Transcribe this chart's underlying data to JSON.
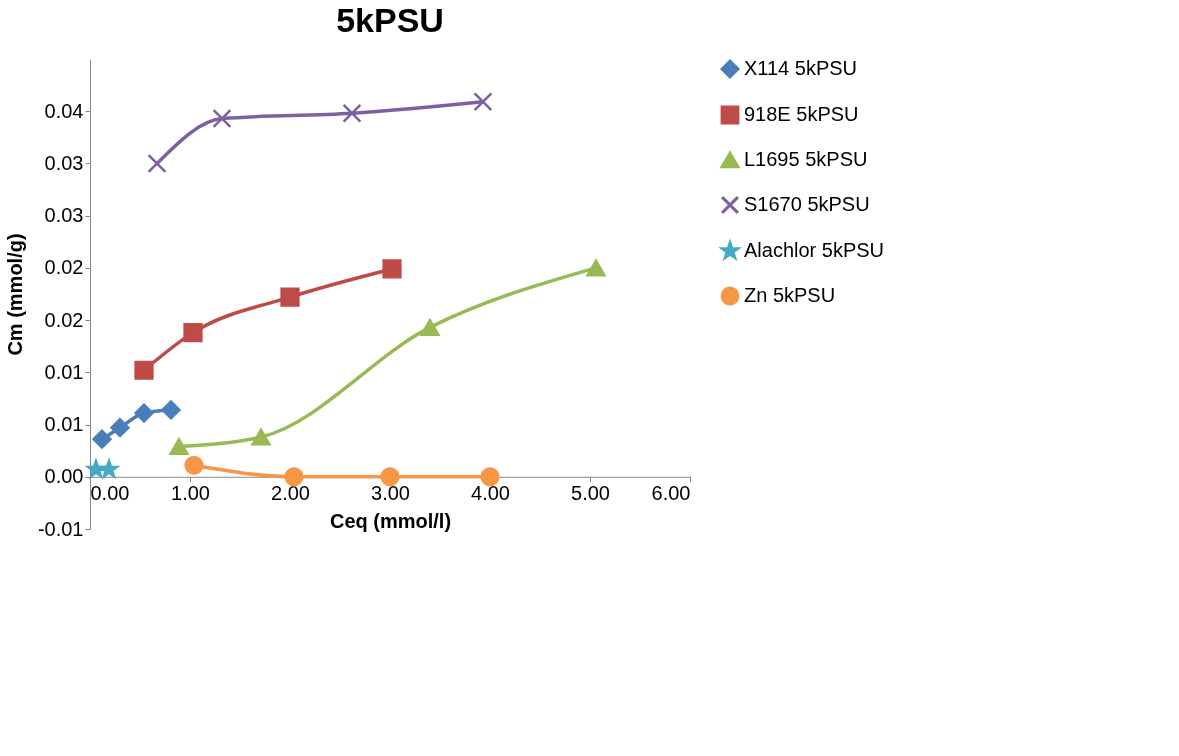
{
  "chart_data": {
    "type": "line",
    "title": "5kPSU",
    "xlabel": "Ceq (mmol/l)",
    "ylabel": "Cm (mmol/g)",
    "xlim": [
      0,
      6
    ],
    "xticks": [
      {
        "value": 0,
        "label": "0.00"
      },
      {
        "value": 1,
        "label": "1.00"
      },
      {
        "value": 2,
        "label": "2.00"
      },
      {
        "value": 3,
        "label": "3.00"
      },
      {
        "value": 4,
        "label": "4.00"
      },
      {
        "value": 5,
        "label": "5.00"
      },
      {
        "value": 6,
        "label": "6.00"
      }
    ],
    "ylim": [
      -0.005,
      0.04
    ],
    "yticks": [
      {
        "value": -0.005,
        "label": "-0.01"
      },
      {
        "value": 0,
        "label": "0.00"
      },
      {
        "value": 0.005,
        "label": "0.01"
      },
      {
        "value": 0.01,
        "label": "0.01"
      },
      {
        "value": 0.015,
        "label": "0.02"
      },
      {
        "value": 0.02,
        "label": "0.02"
      },
      {
        "value": 0.025,
        "label": "0.03"
      },
      {
        "value": 0.03,
        "label": "0.03"
      },
      {
        "value": 0.035,
        "label": "0.04"
      }
    ],
    "grid": false,
    "legend": "right",
    "line_style": "solid",
    "series": [
      {
        "name": "X114 5kPSU",
        "color": "#4a7ebb",
        "marker": "diamond",
        "x": [
          0.12,
          0.3,
          0.54,
          0.81
        ],
        "values": [
          0.0036,
          0.0047,
          0.0061,
          0.0064
        ]
      },
      {
        "name": "918E 5kPSU",
        "color": "#be4b48",
        "marker": "square",
        "x": [
          0.54,
          1.03,
          2.0,
          3.02
        ],
        "values": [
          0.0102,
          0.0138,
          0.0172,
          0.0199
        ]
      },
      {
        "name": "L1695 5kPSU",
        "color": "#98b954",
        "marker": "triangle",
        "x": [
          0.89,
          1.71,
          3.4,
          5.06
        ],
        "values": [
          0.0029,
          0.0038,
          0.0143,
          0.02
        ]
      },
      {
        "name": "S1670 5kPSU",
        "color": "#7d60a0",
        "marker": "cross",
        "x": [
          0.67,
          1.32,
          2.62,
          3.93
        ],
        "values": [
          0.03,
          0.0343,
          0.0348,
          0.0359
        ]
      },
      {
        "name": "Alachlor 5kPSU",
        "color": "#46aac5",
        "marker": "star",
        "x": [
          0.06,
          0.19
        ],
        "values": [
          0.0007,
          0.0007
        ]
      },
      {
        "name": "Zn 5kPSU",
        "color": "#f79646",
        "marker": "circle",
        "x": [
          1.04,
          2.04,
          3.0,
          4.0
        ],
        "values": [
          0.0011,
          0.0,
          0.0,
          0.0
        ]
      }
    ]
  }
}
